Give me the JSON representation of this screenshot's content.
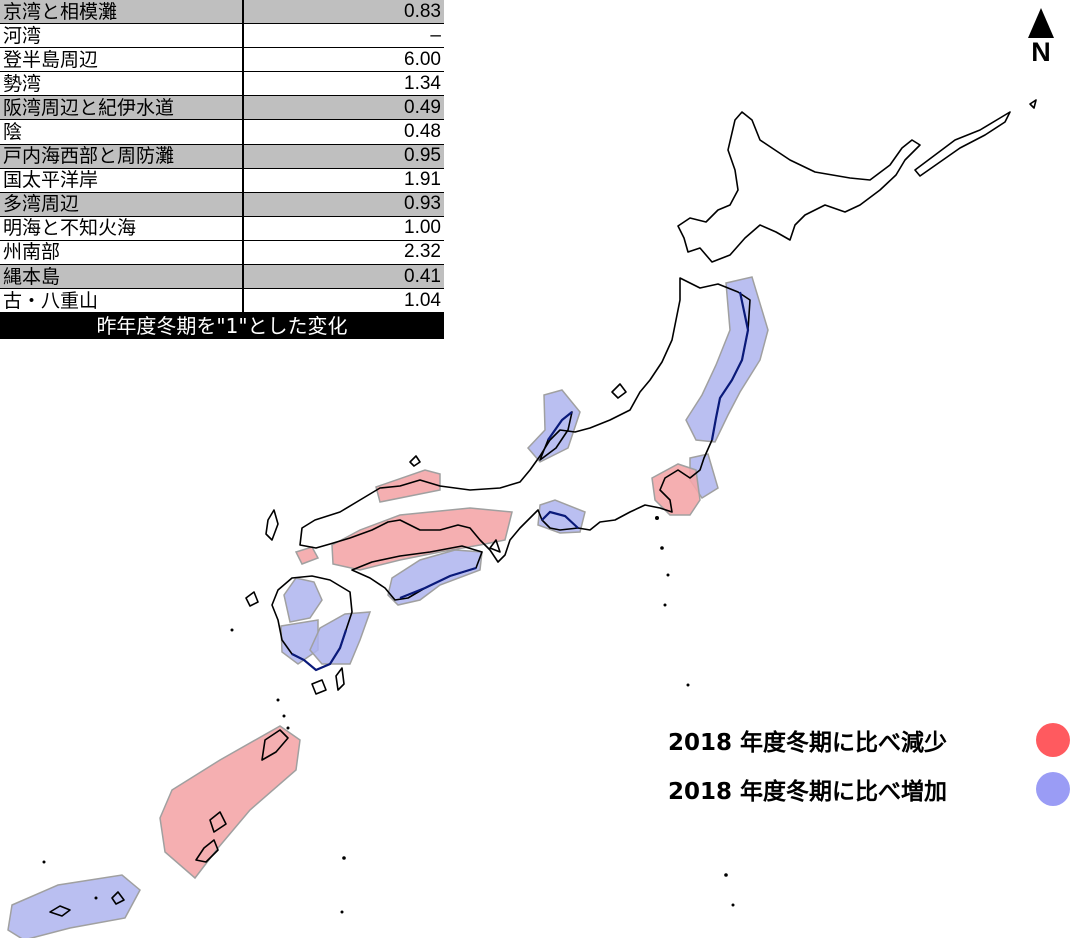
{
  "table": {
    "rows": [
      {
        "name": "京湾と相模灘",
        "value": "0.83",
        "shaded": true
      },
      {
        "name": "河湾",
        "value": "–",
        "shaded": false
      },
      {
        "name": "登半島周辺",
        "value": "6.00",
        "shaded": false
      },
      {
        "name": "勢湾",
        "value": "1.34",
        "shaded": false
      },
      {
        "name": "阪湾周辺と紀伊水道",
        "value": "0.49",
        "shaded": true
      },
      {
        "name": "陰",
        "value": "0.48",
        "shaded": false
      },
      {
        "name": "戸内海西部と周防灘",
        "value": "0.95",
        "shaded": true
      },
      {
        "name": "国太平洋岸",
        "value": "1.91",
        "shaded": false
      },
      {
        "name": "多湾周辺",
        "value": "0.93",
        "shaded": true
      },
      {
        "name": "明海と不知火海",
        "value": "1.00",
        "shaded": false
      },
      {
        "name": "州南部",
        "value": "2.32",
        "shaded": false
      },
      {
        "name": "縄本島",
        "value": "0.41",
        "shaded": true
      },
      {
        "name": "古・八重山",
        "value": "1.04",
        "shaded": false
      }
    ],
    "caption": "昨年度冬期を\"1\"とした変化"
  },
  "north": {
    "label": "N"
  },
  "legend": [
    {
      "label": "2018 年度冬期に比べ減少",
      "color": "#ff5a5f"
    },
    {
      "label": "2018 年度冬期に比べ増加",
      "color": "#9a9cf5"
    }
  ],
  "colors": {
    "decrease_fill": "#f4a6a8",
    "increase_fill": "#aeb4ee",
    "region_stroke": "#a0a0a0",
    "coast": "#000000",
    "coast_highlight": "#0a1a7a"
  }
}
